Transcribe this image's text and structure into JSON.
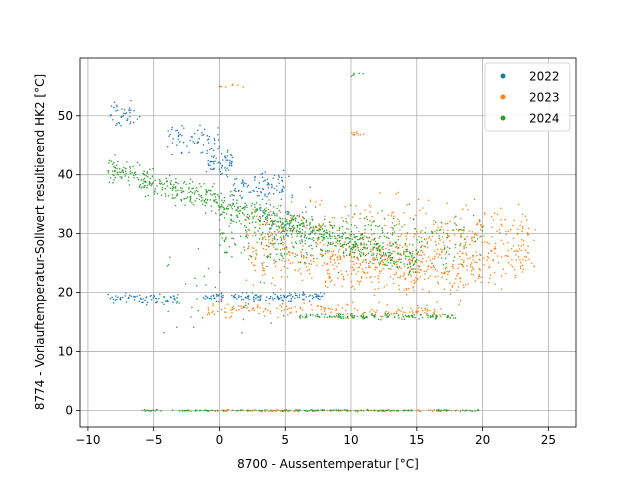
{
  "chart_data": {
    "type": "scatter",
    "xlabel": "8700 - Aussentemperatur [°C]",
    "ylabel": "8774 - Vorlauftemperatur-Sollwert resultierend HK2 [°C]",
    "xlim": [
      -10.6,
      27.1
    ],
    "ylim": [
      -2.8,
      59.8
    ],
    "xticks": [
      "−10",
      "−5",
      "0",
      "5",
      "10",
      "15",
      "20",
      "25"
    ],
    "yticks": [
      "0",
      "10",
      "20",
      "30",
      "40",
      "50"
    ],
    "xtick_values": [
      -10,
      -5,
      0,
      5,
      10,
      15,
      20,
      25
    ],
    "ytick_values": [
      0,
      10,
      20,
      30,
      40,
      50
    ],
    "grid": true,
    "legend_position": "top-right",
    "series": [
      {
        "name": "2022",
        "color": "#1f77b4",
        "clusters": [
          {
            "x_range": [
              -8.5,
              -6
            ],
            "y_center": 50,
            "y_spread": 2,
            "n": 40
          },
          {
            "x_range": [
              -4,
              0
            ],
            "y_center": 46,
            "y_spread": 2,
            "n": 60
          },
          {
            "x_range": [
              -1,
              1
            ],
            "y_center": 42,
            "y_spread": 2,
            "n": 60
          },
          {
            "x_range": [
              1,
              5
            ],
            "y_center": 38,
            "y_spread": 2.5,
            "n": 80
          },
          {
            "x_range": [
              -8.5,
              -3
            ],
            "y_center": 19,
            "y_spread": 0.7,
            "n": 70
          },
          {
            "x_range": [
              -1.5,
              8
            ],
            "y_center": 19.3,
            "y_spread": 0.6,
            "n": 140
          },
          {
            "x_range": [
              3,
              7
            ],
            "y_center": 33,
            "y_spread": 5,
            "n": 60
          }
        ]
      },
      {
        "name": "2023",
        "color": "#ff7f0e",
        "clusters": [
          {
            "x_range": [
              2,
              24
            ],
            "y_center": 28,
            "y_spread": 6,
            "n": 650
          },
          {
            "x_range": [
              8,
              20
            ],
            "y_center": 24,
            "y_spread": 4,
            "n": 250
          },
          {
            "x_range": [
              -1,
              17
            ],
            "y_center": 17,
            "y_spread": 1,
            "n": 160
          },
          {
            "x_range": [
              -3,
              19
            ],
            "y_center": 0,
            "y_spread": 0.15,
            "n": 110
          },
          {
            "x_range": [
              0,
              2
            ],
            "y_center": 55,
            "y_spread": 0.3,
            "n": 8
          },
          {
            "x_range": [
              10,
              11
            ],
            "y_center": 47,
            "y_spread": 0.3,
            "n": 10
          }
        ]
      },
      {
        "name": "2024",
        "color": "#2ca02c",
        "clusters": [
          {
            "trend": [
              [
                -8.5,
                41
              ],
              [
                15,
                25
              ]
            ],
            "y_spread": 2,
            "n": 700
          },
          {
            "x_range": [
              0,
              20
            ],
            "y_center": 29,
            "y_spread": 4,
            "n": 350
          },
          {
            "x_range": [
              6,
              18
            ],
            "y_center": 16,
            "y_spread": 0.4,
            "n": 150
          },
          {
            "x_range": [
              -6,
              20
            ],
            "y_center": 0,
            "y_spread": 0.1,
            "n": 180
          },
          {
            "x_range": [
              10,
              11
            ],
            "y_center": 57,
            "y_spread": 0.3,
            "n": 6
          },
          {
            "x_range": [
              -5,
              5
            ],
            "y_center": 20,
            "y_spread": 8,
            "n": 40
          }
        ]
      }
    ]
  }
}
